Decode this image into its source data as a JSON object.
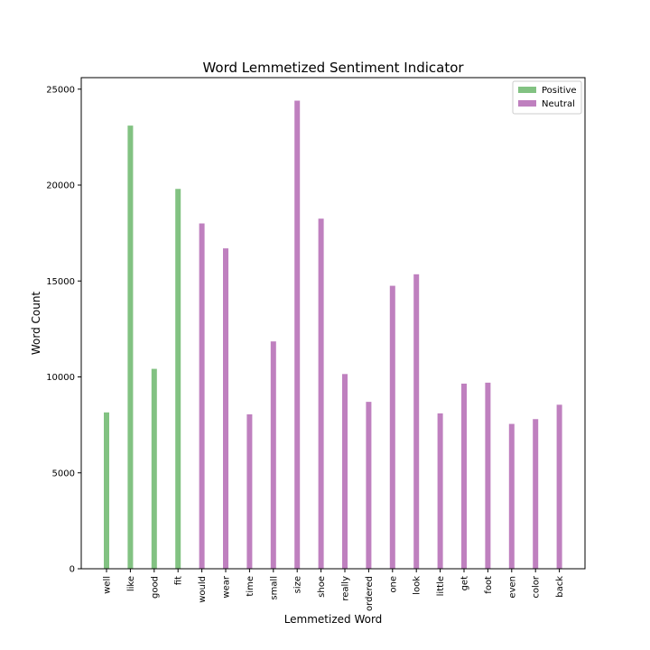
{
  "chart_data": {
    "type": "bar",
    "title": "Word Lemmetized Sentiment Indicator",
    "xlabel": "Lemmetized Word",
    "ylabel": "Word Count",
    "ylim": [
      0,
      25600
    ],
    "yticks": [
      0,
      5000,
      10000,
      15000,
      20000,
      25000
    ],
    "legend_position": "top-right",
    "categories": [
      "well",
      "like",
      "good",
      "fit",
      "would",
      "wear",
      "time",
      "small",
      "size",
      "shoe",
      "really",
      "ordered",
      "one",
      "look",
      "little",
      "get",
      "foot",
      "even",
      "color",
      "back"
    ],
    "series": [
      {
        "name": "Positive",
        "color": "#82c282",
        "values": [
          8150,
          23100,
          10420,
          19800,
          null,
          null,
          null,
          null,
          null,
          null,
          null,
          null,
          null,
          null,
          null,
          null,
          null,
          null,
          null,
          null
        ]
      },
      {
        "name": "Neutral",
        "color": "#bf80bf",
        "values": [
          null,
          null,
          null,
          null,
          18000,
          16700,
          8050,
          11850,
          24400,
          18250,
          10150,
          8700,
          14750,
          15350,
          8100,
          9650,
          9700,
          7550,
          7800,
          8550
        ]
      }
    ]
  }
}
